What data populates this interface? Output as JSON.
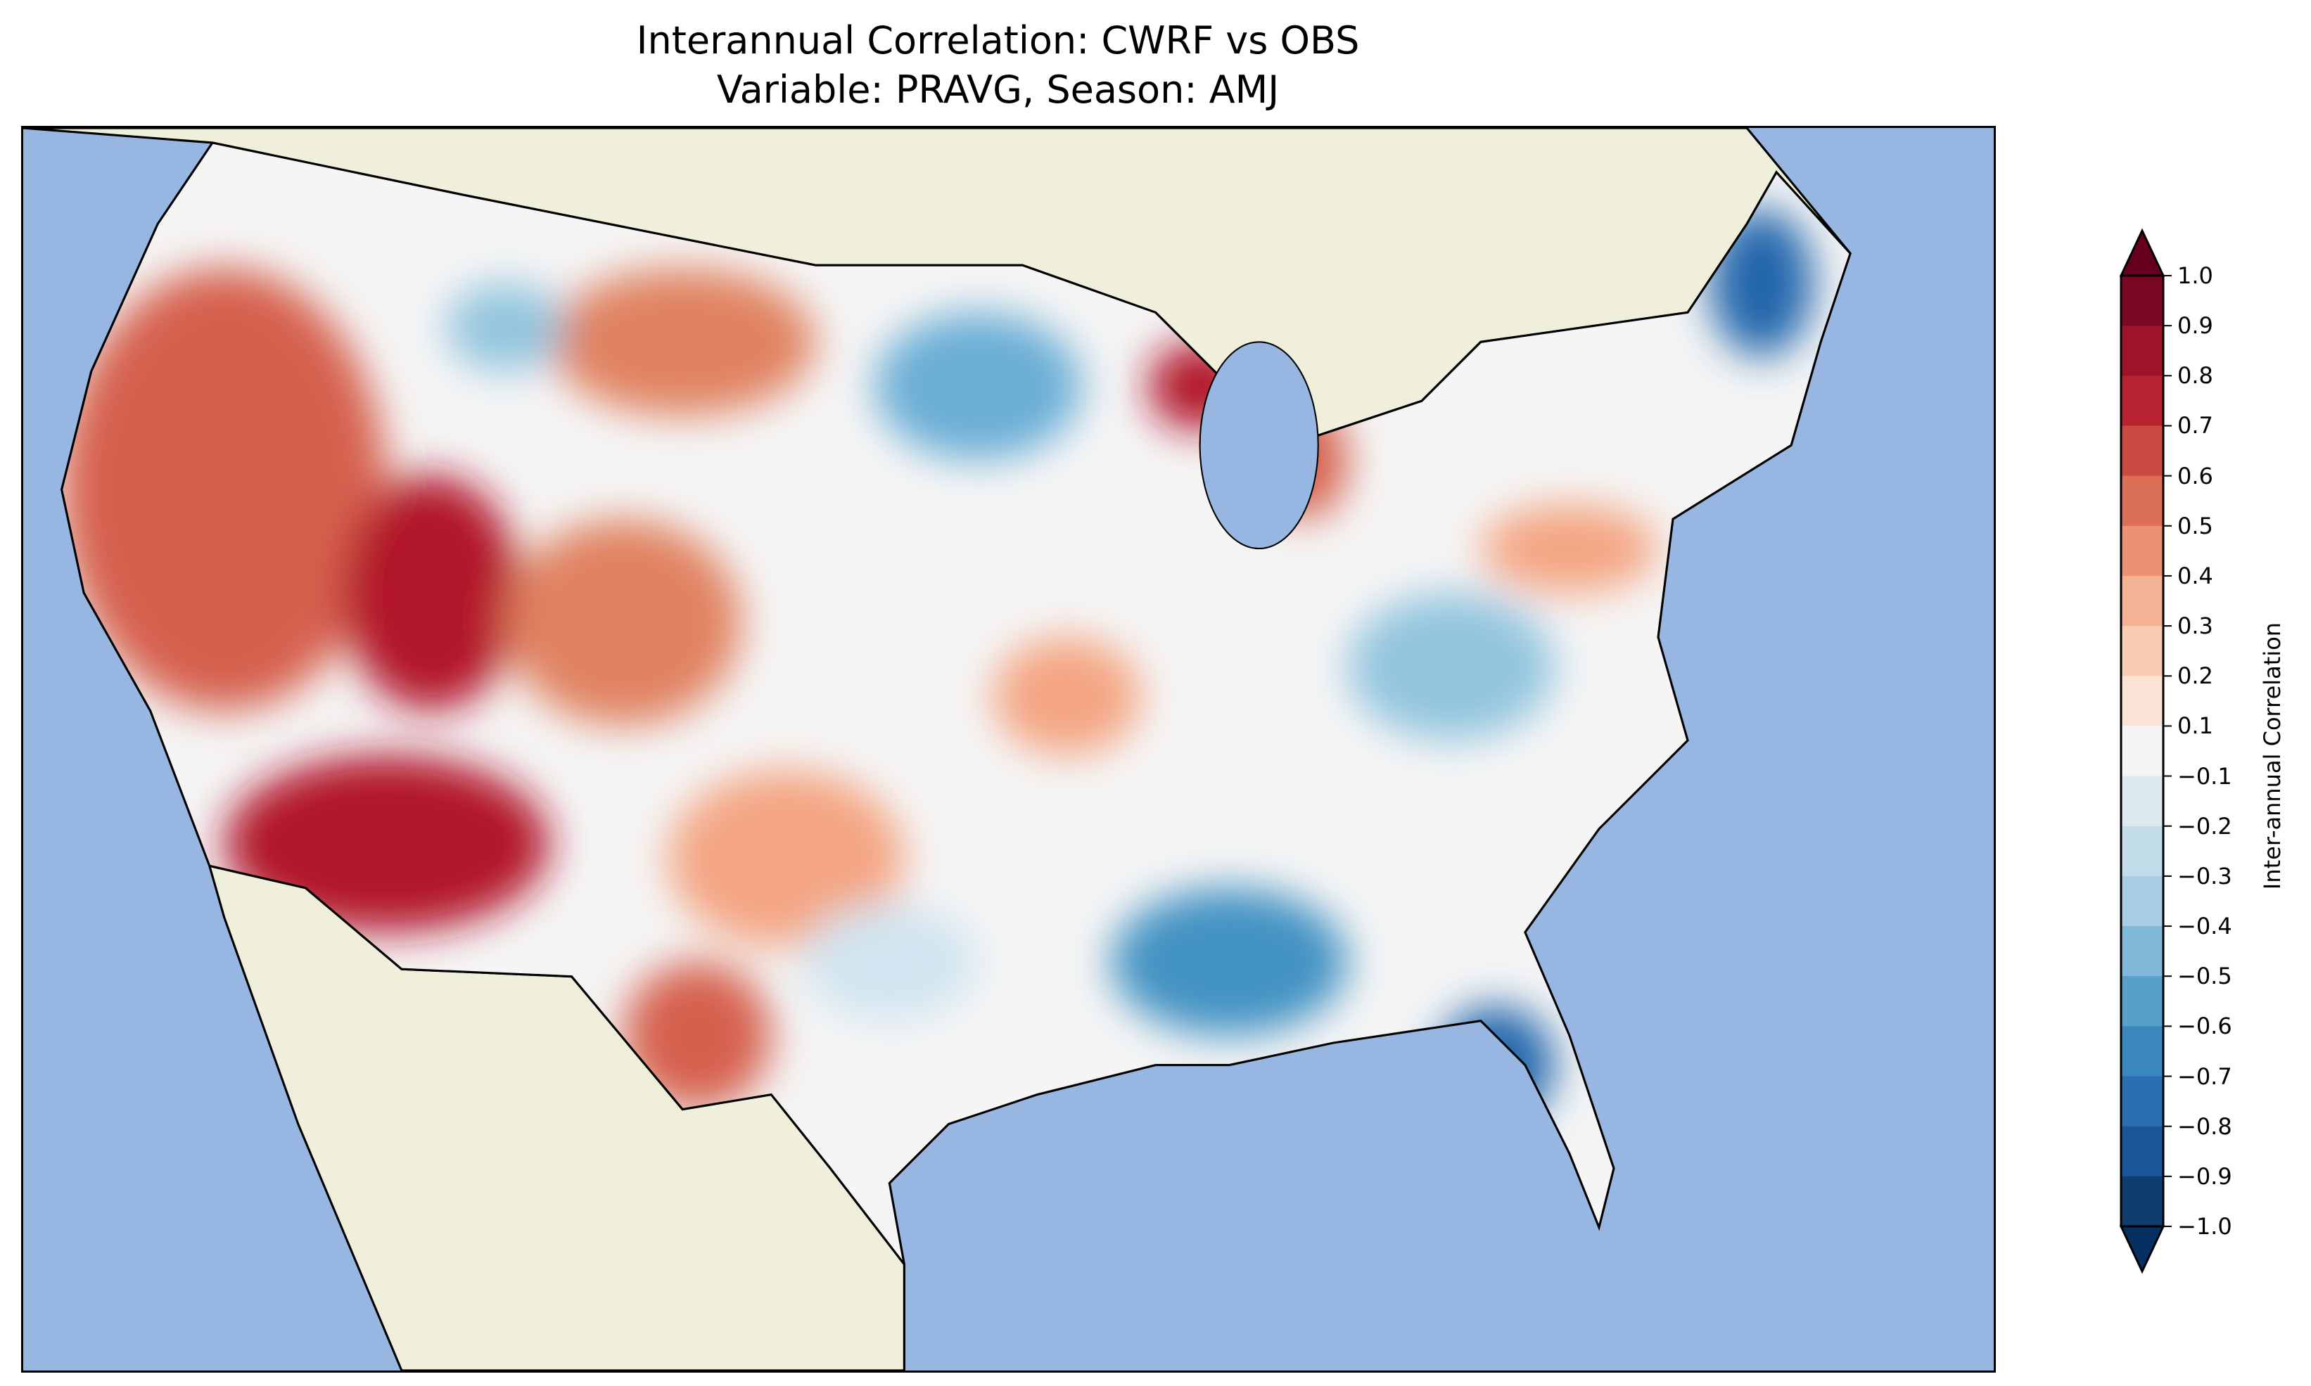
{
  "title_line1": "Interannual Correlation: CWRF vs OBS",
  "title_line2": "Variable: PRAVG, Season: AMJ",
  "colorbar": {
    "label": "Inter-annual Correlation",
    "ticks": [
      "1.0",
      "0.9",
      "0.8",
      "0.7",
      "0.6",
      "0.5",
      "0.4",
      "0.3",
      "0.2",
      "0.1",
      "−0.1",
      "−0.2",
      "−0.3",
      "−0.4",
      "−0.5",
      "−0.6",
      "−0.7",
      "−0.8",
      "−0.9",
      "−1.0"
    ],
    "colors": [
      "#7a0822",
      "#9f1328",
      "#b72230",
      "#cb4a42",
      "#dc6f58",
      "#ec9272",
      "#f4b294",
      "#f9cbb1",
      "#fbe3d5",
      "#f5f5f5",
      "#dce9f1",
      "#c3dcea",
      "#a6cde3",
      "#7fb8d8",
      "#58a0ca",
      "#3b88be",
      "#2b6fb0",
      "#1a5598",
      "#0f3d70",
      "#0b2f5e"
    ],
    "over_color": "#67001f",
    "under_color": "#053061",
    "range": [
      -1.0,
      1.0
    ]
  },
  "colors": {
    "ocean": "#97b6e1",
    "land": "#efefdb"
  }
}
